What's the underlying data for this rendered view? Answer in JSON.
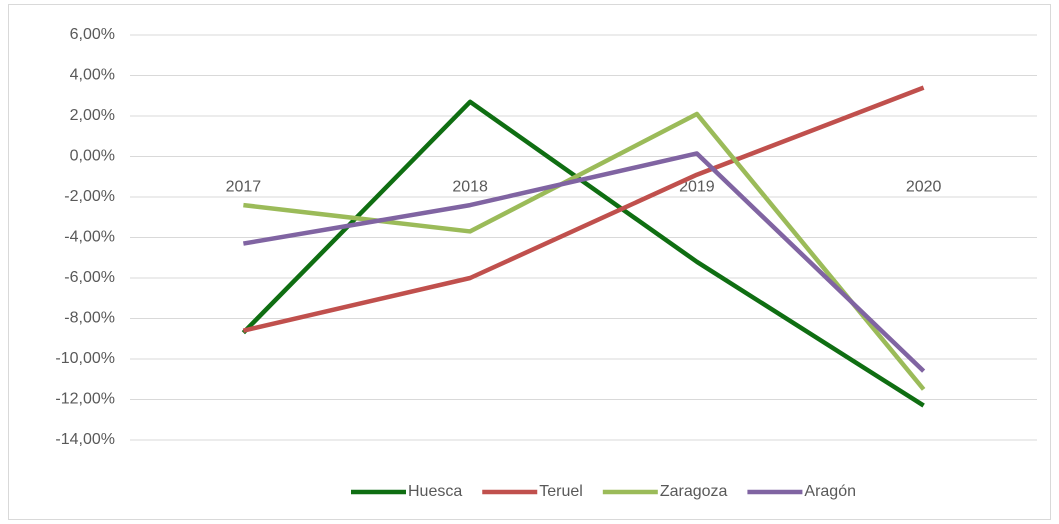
{
  "chart_data": {
    "type": "line",
    "categories": [
      "2017",
      "2018",
      "2019",
      "2020"
    ],
    "series": [
      {
        "name": "Huesca",
        "color": "#0f6e12",
        "values": [
          -8.7,
          2.7,
          -5.2,
          -12.3
        ]
      },
      {
        "name": "Teruel",
        "color": "#c0504d",
        "values": [
          -8.6,
          -6.0,
          -0.9,
          3.4
        ]
      },
      {
        "name": "Zaragoza",
        "color": "#9bbb59",
        "values": [
          -2.4,
          -3.7,
          2.1,
          -11.5
        ]
      },
      {
        "name": "Aragón",
        "color": "#8064a2",
        "values": [
          -4.3,
          -2.4,
          0.15,
          -10.6
        ]
      }
    ],
    "ylim": [
      -14,
      6
    ],
    "yticks": [
      {
        "value": -14,
        "label": "-14,00%"
      },
      {
        "value": -12,
        "label": "-12,00%"
      },
      {
        "value": -10,
        "label": "-10,00%"
      },
      {
        "value": -8,
        "label": "-8,00%"
      },
      {
        "value": -6,
        "label": "-6,00%"
      },
      {
        "value": -4,
        "label": "-4,00%"
      },
      {
        "value": -2,
        "label": "-2,00%"
      },
      {
        "value": 0,
        "label": "0,00%"
      },
      {
        "value": 2,
        "label": "2,00%"
      },
      {
        "value": 4,
        "label": "4,00%"
      },
      {
        "value": 6,
        "label": "6,00%"
      }
    ],
    "grid": true,
    "legend": "bottom"
  }
}
